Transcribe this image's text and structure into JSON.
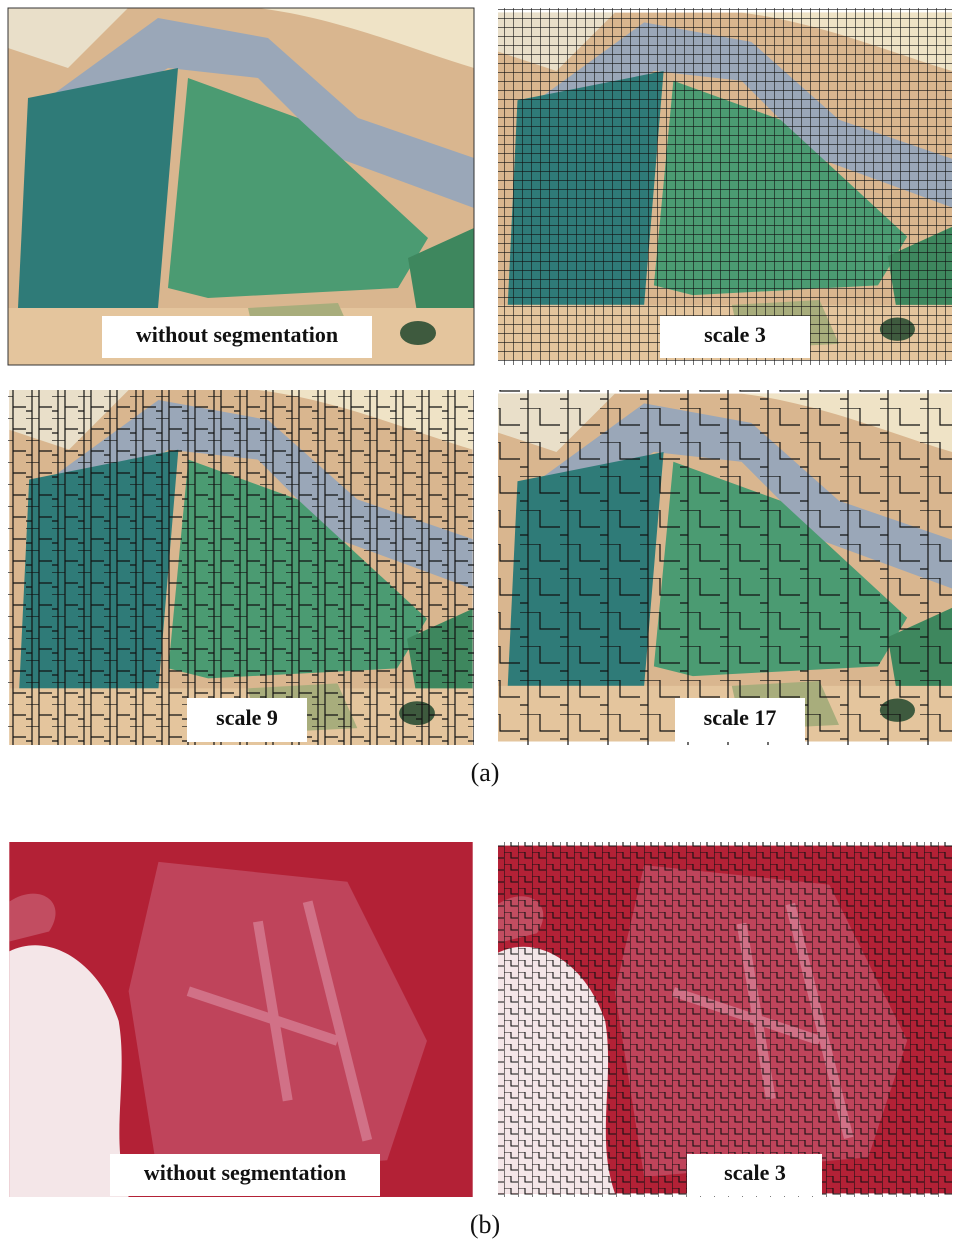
{
  "figure_a": {
    "images": [
      {
        "label": "without segmentation"
      },
      {
        "label": "scale 3"
      },
      {
        "label": "scale 9"
      },
      {
        "label": "scale 17"
      }
    ],
    "caption": "(a)"
  },
  "figure_b": {
    "images": [
      {
        "label": "without segmentation"
      },
      {
        "label": "scale 3"
      }
    ],
    "caption": "(b)"
  }
}
